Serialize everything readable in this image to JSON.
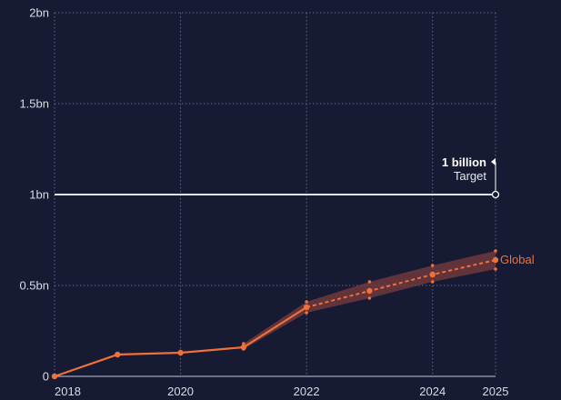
{
  "colors": {
    "background": "#161a33",
    "series": "#f0703a",
    "band": "#7a3e3e",
    "target_line": "#ffffff",
    "grid": "#7c809c",
    "text": "#d9dbe5"
  },
  "chart_data": {
    "type": "line",
    "title": "",
    "xlabel": "",
    "ylabel": "",
    "xlim": [
      2018,
      2025
    ],
    "ylim": [
      0,
      2
    ],
    "y_ticks": [
      {
        "value": 0,
        "label": "0"
      },
      {
        "value": 0.5,
        "label": "0.5bn"
      },
      {
        "value": 1,
        "label": "1bn"
      },
      {
        "value": 1.5,
        "label": "1.5bn"
      },
      {
        "value": 2,
        "label": "2bn"
      }
    ],
    "x_ticks": [
      {
        "value": 2018,
        "label": "2018"
      },
      {
        "value": 2020,
        "label": "2020"
      },
      {
        "value": 2022,
        "label": "2022"
      },
      {
        "value": 2024,
        "label": "2024"
      },
      {
        "value": 2025,
        "label": "2025"
      }
    ],
    "grid": true,
    "series": [
      {
        "name": "Global",
        "actual": [
          {
            "x": 2018,
            "y": 0
          },
          {
            "x": 2019,
            "y": 0.12
          },
          {
            "x": 2020,
            "y": 0.13
          },
          {
            "x": 2021,
            "y": 0.16
          },
          {
            "x": 2022,
            "y": 0.38
          }
        ],
        "projected": [
          {
            "x": 2022,
            "y": 0.38
          },
          {
            "x": 2023,
            "y": 0.47
          },
          {
            "x": 2024,
            "y": 0.56
          },
          {
            "x": 2025,
            "y": 0.64
          }
        ],
        "band": [
          {
            "x": 2021,
            "low": 0.15,
            "high": 0.18
          },
          {
            "x": 2022,
            "low": 0.35,
            "high": 0.41
          },
          {
            "x": 2023,
            "low": 0.43,
            "high": 0.52
          },
          {
            "x": 2024,
            "low": 0.52,
            "high": 0.61
          },
          {
            "x": 2025,
            "low": 0.59,
            "high": 0.69
          }
        ]
      }
    ],
    "target": {
      "value": 1,
      "x": 2025,
      "label_bold": "1 billion",
      "label": "Target"
    }
  }
}
